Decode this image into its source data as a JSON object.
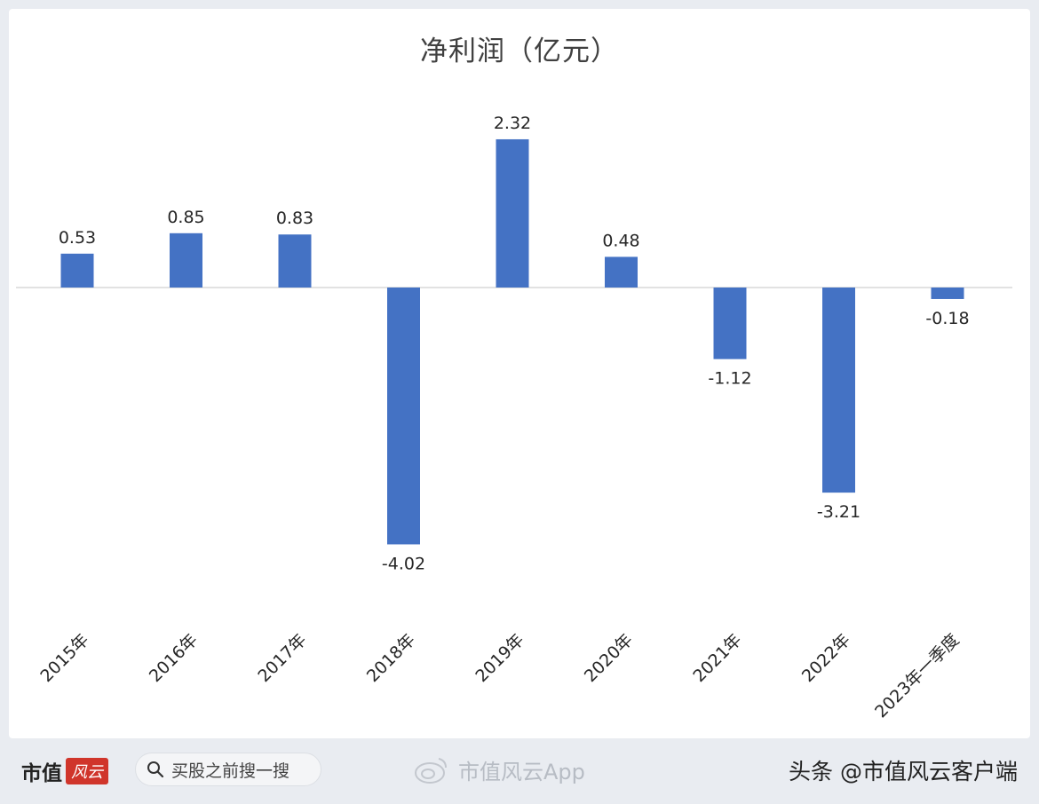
{
  "chart_data": {
    "type": "bar",
    "title": "净利润（亿元）",
    "categories": [
      "2015年",
      "2016年",
      "2017年",
      "2018年",
      "2019年",
      "2020年",
      "2021年",
      "2022年",
      "2023年一季度"
    ],
    "values": [
      0.53,
      0.85,
      0.83,
      -4.02,
      2.32,
      0.48,
      -1.12,
      -3.21,
      -0.18
    ],
    "data_labels": [
      "0.53",
      "0.85",
      "0.83",
      "-4.02",
      "2.32",
      "0.48",
      "-1.12",
      "-3.21",
      "-0.18"
    ],
    "xlabel": "",
    "ylabel": "",
    "ylim": [
      -4.02,
      2.32
    ],
    "grid": false,
    "bar_color": "#4472c4",
    "axis_color": "#d9d9d9"
  },
  "footer": {
    "brand_name": "市值",
    "brand_seal": "风云",
    "search_placeholder": "买股之前搜一搜",
    "watermark_app": "市值风云App",
    "source": "头条 @市值风云客户端"
  },
  "icons": {
    "search": "search-icon",
    "weibo": "weibo-icon"
  }
}
